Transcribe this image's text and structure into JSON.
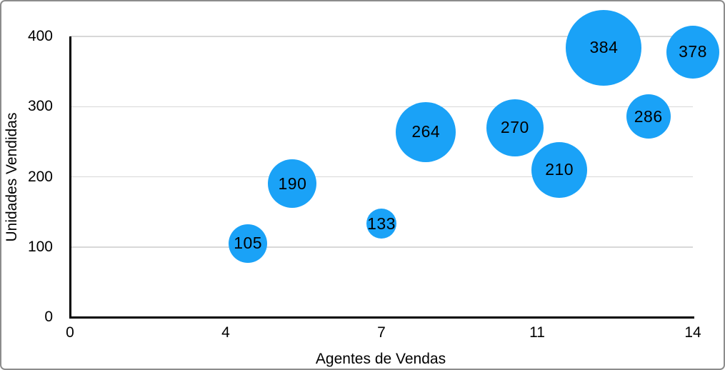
{
  "figure": {
    "background": "#ffffff",
    "border_color": "#8c8c8c"
  },
  "chart_data": {
    "type": "scatter",
    "subtype": "bubble",
    "title": "",
    "xlabel": "Agentes de Vendas",
    "ylabel": "Unidades Vendidas",
    "xlim": [
      0,
      14
    ],
    "ylim": [
      0,
      400
    ],
    "grid": "horizontal-only",
    "legend": "none",
    "x_ticks": [
      {
        "value": 0,
        "label": "0"
      },
      {
        "value": 3.5,
        "label": "4"
      },
      {
        "value": 7,
        "label": "7"
      },
      {
        "value": 10.5,
        "label": "11"
      },
      {
        "value": 14,
        "label": "14"
      }
    ],
    "y_ticks": [
      {
        "value": 0,
        "label": "0"
      },
      {
        "value": 100,
        "label": "100"
      },
      {
        "value": 200,
        "label": "200"
      },
      {
        "value": 300,
        "label": "300"
      },
      {
        "value": 400,
        "label": "400"
      }
    ],
    "series": [
      {
        "name": "unidades-vendidas-bubbles",
        "color": "#1aa2f7",
        "points": [
          {
            "x": 4,
            "y": 105,
            "label": "105",
            "radius_px": 27
          },
          {
            "x": 5,
            "y": 190,
            "label": "190",
            "radius_px": 34
          },
          {
            "x": 7,
            "y": 133,
            "label": "133",
            "radius_px": 21
          },
          {
            "x": 8,
            "y": 264,
            "label": "264",
            "radius_px": 42
          },
          {
            "x": 10,
            "y": 270,
            "label": "270",
            "radius_px": 40
          },
          {
            "x": 11,
            "y": 210,
            "label": "210",
            "radius_px": 39
          },
          {
            "x": 12,
            "y": 384,
            "label": "384",
            "radius_px": 53
          },
          {
            "x": 13,
            "y": 286,
            "label": "286",
            "radius_px": 31
          },
          {
            "x": 14,
            "y": 378,
            "label": "378",
            "radius_px": 37
          }
        ]
      }
    ],
    "colors": {
      "bubble_fill": "#1aa2f7",
      "axis_line": "#000000",
      "gridline": "#d8d8d8",
      "text": "#000000"
    }
  }
}
